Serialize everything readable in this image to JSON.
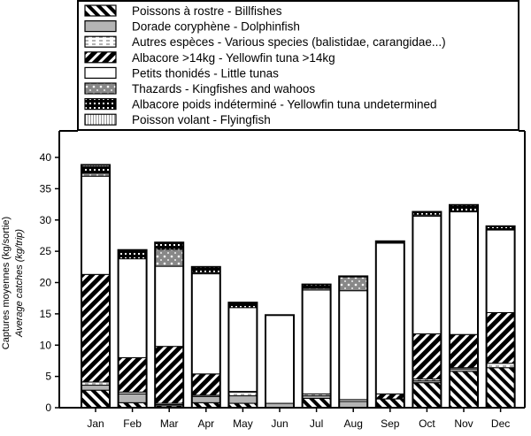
{
  "chart_data": {
    "type": "bar",
    "stacked": true,
    "title": "",
    "xlabel": "",
    "ylabel": "Captures moyennes (kg/sortie)",
    "ylabel2": "Average catches (kg/trip)",
    "ylim": [
      0,
      40
    ],
    "yticks": [
      0,
      5,
      10,
      15,
      20,
      25,
      30,
      35,
      40
    ],
    "legend_position": "top",
    "categories": [
      "Jan",
      "Feb",
      "Mar",
      "Apr",
      "May",
      "Jun",
      "Jul",
      "Aug",
      "Sep",
      "Oct",
      "Nov",
      "Dec"
    ],
    "series": [
      {
        "name": "Poissons à rostre - Billfishes",
        "pattern": "backslash",
        "values": [
          2.8,
          0.8,
          0.3,
          0.8,
          0.7,
          0,
          1.5,
          0,
          1.4,
          4.0,
          5.8,
          6.4
        ]
      },
      {
        "name": "Dorade coryphène - Dolphinfish",
        "pattern": "gray",
        "values": [
          0.8,
          1.4,
          0.2,
          1.0,
          1.2,
          0.7,
          0.4,
          1.0,
          0,
          0.3,
          0.4,
          0
        ]
      },
      {
        "name": "Autres espèces - Various species (balistidae, carangidae...)",
        "pattern": "dashed",
        "values": [
          0.5,
          0.3,
          0.2,
          0.2,
          0.6,
          0,
          0.3,
          0.3,
          0,
          0.3,
          0.2,
          0.7
        ]
      },
      {
        "name": "Albacore >14kg - Yellowfin tuna >14kg",
        "pattern": "slash",
        "values": [
          17.2,
          5.5,
          9.1,
          3.4,
          0.1,
          0,
          0,
          0,
          0.8,
          7.2,
          5.3,
          8.1
        ]
      },
      {
        "name": "Petits thonidés - Little tunas",
        "pattern": "white",
        "values": [
          15.7,
          15.8,
          12.8,
          16.0,
          13.4,
          14.1,
          16.6,
          17.4,
          24.1,
          18.8,
          19.6,
          13.2
        ]
      },
      {
        "name": "Thazards - Kingfishes and wahoos",
        "pattern": "graydots",
        "values": [
          0.5,
          0,
          2.7,
          0.2,
          0,
          0,
          0.3,
          2.2,
          0,
          0.2,
          0,
          0
        ]
      },
      {
        "name": "Albacore poids indéterminé - Yellowfin tuna undetermined",
        "pattern": "blackdots",
        "values": [
          1.0,
          1.4,
          1.1,
          0.9,
          0.8,
          0,
          0.6,
          0.1,
          0.3,
          0.5,
          1.1,
          0.6
        ]
      },
      {
        "name": "Poisson volant - Flyingfish",
        "pattern": "vlines",
        "values": [
          0.3,
          0,
          0,
          0,
          0,
          0,
          0,
          0,
          0,
          0,
          0,
          0
        ]
      }
    ]
  }
}
